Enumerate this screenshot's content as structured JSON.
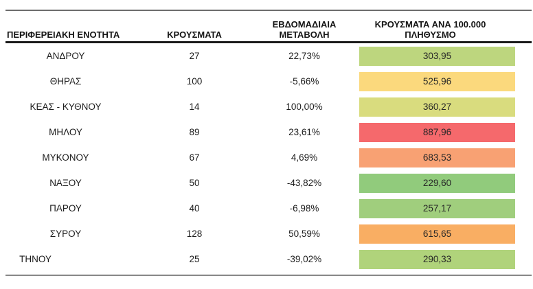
{
  "accent_colors": {
    "top_border": "#6d6d6d",
    "header_underline": "#1a1a1a",
    "bottom_border": "#878787"
  },
  "chart_data": {
    "type": "table",
    "title": "",
    "columns": [
      "ΠΕΡΙΦΕΡΕΙΑΚΗ ΕΝΟΤΗΤΑ",
      "ΚΡΟΥΣΜΑΤΑ",
      "ΕΒΔΟΜΑΔΙΑΙΑ ΜΕΤΑΒΟΛΗ",
      "ΚΡΟΥΣΜΑΤΑ ΑΝΑ 100.000 ΠΛΗΘΥΣΜΟ"
    ],
    "rows": [
      {
        "region": "ΑΝΔΡΟΥ",
        "cases": "27",
        "weekly_change": "22,73%",
        "per_100k": "303,95",
        "per_100k_value": 303.95,
        "color": "#BDD67E"
      },
      {
        "region": "ΘΗΡΑΣ",
        "cases": "100",
        "weekly_change": "-5,66%",
        "per_100k": "525,96",
        "per_100k_value": 525.96,
        "color": "#FBD97D"
      },
      {
        "region": "ΚΕΑΣ - ΚΥΘΝΟΥ",
        "cases": "14",
        "weekly_change": "100,00%",
        "per_100k": "360,27",
        "per_100k_value": 360.27,
        "color": "#D9DC7E"
      },
      {
        "region": "ΜΗΛΟΥ",
        "cases": "89",
        "weekly_change": "23,61%",
        "per_100k": "887,96",
        "per_100k_value": 887.96,
        "color": "#F5696C"
      },
      {
        "region": "ΜΥΚΟΝΟΥ",
        "cases": "67",
        "weekly_change": "4,69%",
        "per_100k": "683,53",
        "per_100k_value": 683.53,
        "color": "#F8A173"
      },
      {
        "region": "ΝΑΞΟΥ",
        "cases": "50",
        "weekly_change": "-43,82%",
        "per_100k": "229,60",
        "per_100k_value": 229.6,
        "color": "#91CB7C"
      },
      {
        "region": "ΠΑΡΟΥ",
        "cases": "40",
        "weekly_change": "-6,98%",
        "per_100k": "257,17",
        "per_100k_value": 257.17,
        "color": "#A0CE7D"
      },
      {
        "region": "ΣΥΡΟΥ",
        "cases": "128",
        "weekly_change": "50,59%",
        "per_100k": "615,65",
        "per_100k_value": 615.65,
        "color": "#F9AE63"
      },
      {
        "region": "ΤΗΝΟΥ",
        "cases": "25",
        "weekly_change": "-39,02%",
        "per_100k": "290,33",
        "per_100k_value": 290.33,
        "color": "#B0D37B"
      }
    ],
    "layout": {
      "color_scale": "green-low to red-high heatmap on cases per 100.000 column",
      "grid": "off"
    }
  }
}
